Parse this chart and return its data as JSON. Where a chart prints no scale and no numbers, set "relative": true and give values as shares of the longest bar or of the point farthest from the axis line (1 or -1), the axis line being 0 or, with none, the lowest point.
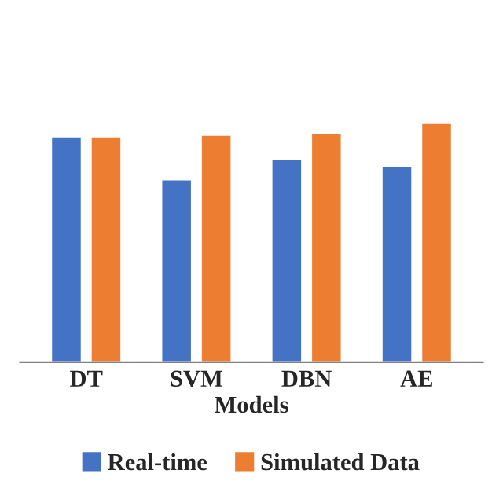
{
  "chart_data": {
    "type": "bar",
    "xlabel": "Models",
    "categories": [
      "DT",
      "SVM",
      "DBN",
      "AE"
    ],
    "relative": true,
    "series": [
      {
        "name": "Real-time",
        "color": "#4472c4",
        "values": [
          0.944,
          0.764,
          0.851,
          0.818
        ]
      },
      {
        "name": "Simulated Data",
        "color": "#ed7d31",
        "values": [
          0.944,
          0.95,
          0.957,
          1
        ]
      }
    ],
    "legend": "bottom",
    "grid": false
  }
}
